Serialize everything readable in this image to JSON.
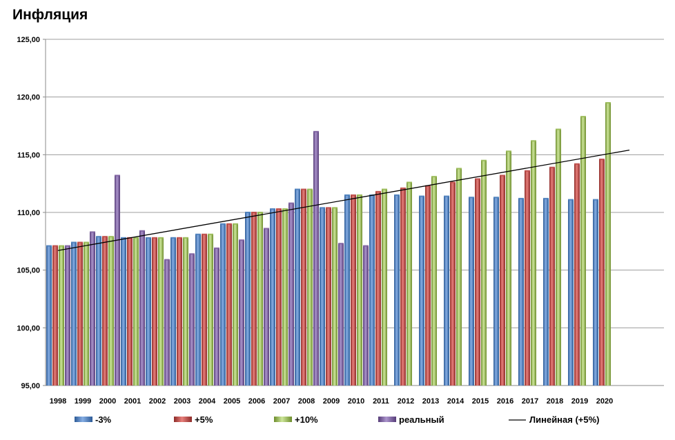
{
  "chart_data": {
    "type": "bar",
    "title": "Инфляция",
    "categories": [
      "1998",
      "1999",
      "2000",
      "2001",
      "2002",
      "2003",
      "2004",
      "2005",
      "2006",
      "2007",
      "2008",
      "2009",
      "2010",
      "2011",
      "2012",
      "2013",
      "2014",
      "2015",
      "2016",
      "2017",
      "2018",
      "2019",
      "2020"
    ],
    "ylim": [
      95,
      125
    ],
    "yticks": [
      95,
      100,
      105,
      110,
      115,
      120,
      125
    ],
    "ytick_labels": [
      "95,00",
      "100,00",
      "105,00",
      "110,00",
      "115,00",
      "120,00",
      "125,00"
    ],
    "grid": true,
    "legend_position": "bottom",
    "series": [
      {
        "name": "-3%",
        "color": "#4a7ebb",
        "values": [
          107.1,
          107.4,
          107.9,
          107.8,
          107.8,
          107.8,
          108.1,
          109.0,
          110.0,
          110.3,
          112.0,
          110.4,
          111.5,
          111.5,
          111.5,
          111.4,
          111.4,
          111.3,
          111.3,
          111.2,
          111.2,
          111.1,
          111.1
        ]
      },
      {
        "name": "+5%",
        "color": "#be4b48",
        "values": [
          107.1,
          107.4,
          107.9,
          107.8,
          107.8,
          107.8,
          108.1,
          109.0,
          110.0,
          110.3,
          112.0,
          110.4,
          111.5,
          111.8,
          112.1,
          112.3,
          112.6,
          112.9,
          113.2,
          113.6,
          113.9,
          114.2,
          114.6
        ]
      },
      {
        "name": "+10%",
        "color": "#98b954",
        "values": [
          107.1,
          107.4,
          107.9,
          107.8,
          107.8,
          107.8,
          108.1,
          109.0,
          110.0,
          110.3,
          112.0,
          110.4,
          111.5,
          112.0,
          112.6,
          113.1,
          113.8,
          114.5,
          115.3,
          116.2,
          117.2,
          118.3,
          119.5
        ]
      },
      {
        "name": "реальный",
        "color": "#7d60a0",
        "values": [
          107.1,
          108.3,
          113.2,
          108.4,
          105.9,
          106.4,
          106.9,
          107.6,
          108.6,
          110.8,
          117.0,
          107.3,
          107.1,
          null,
          null,
          null,
          null,
          null,
          null,
          null,
          null,
          null,
          null
        ]
      }
    ],
    "trendline": {
      "name": "Линейная (+5%)",
      "color": "#000000",
      "x": [
        "1998",
        "2021"
      ],
      "y": [
        106.7,
        115.4
      ]
    }
  }
}
